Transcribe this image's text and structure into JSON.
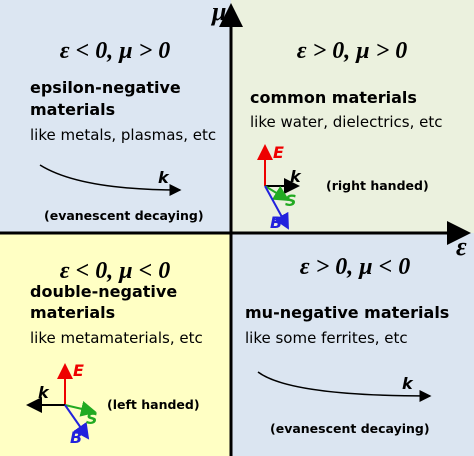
{
  "axes": {
    "y_label": "μ",
    "x_label": "ε"
  },
  "quadrants": [
    {
      "condition": "ε < 0, μ > 0",
      "title_lines": [
        "epsilon-negative",
        "materials"
      ],
      "description": "like metals, plasmas, etc",
      "wave_label": "k",
      "note": "(evanescent decaying)"
    },
    {
      "condition": "ε > 0, μ > 0",
      "title_lines": [
        "common materials"
      ],
      "description": "like water, dielectrics, etc",
      "vectors": {
        "e": "E",
        "k": "k",
        "s": "S",
        "b": "B"
      },
      "note": "(right handed)"
    },
    {
      "condition": "ε < 0, μ < 0",
      "title_lines": [
        "double-negative",
        "materials"
      ],
      "description": "like metamaterials, etc",
      "vectors": {
        "e": "E",
        "k": "k",
        "s": "S",
        "b": "B"
      },
      "note": "(left handed)"
    },
    {
      "condition": "ε > 0, μ < 0",
      "title_lines": [
        "mu-negative materials"
      ],
      "description": "like some ferrites, etc",
      "wave_label": "k",
      "note": "(evanescent decaying)"
    }
  ]
}
